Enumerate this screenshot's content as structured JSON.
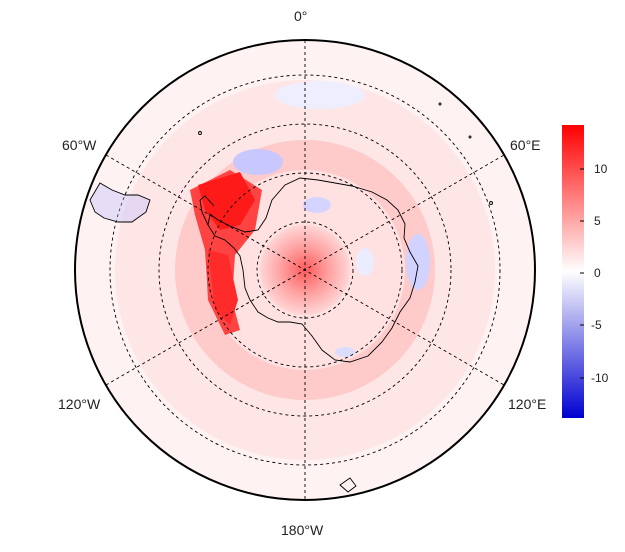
{
  "map": {
    "type": "polar-stereographic",
    "hemisphere": "south",
    "longitude_labels": {
      "top": "0°",
      "upper_left": "60°W",
      "upper_right": "60°E",
      "lower_left": "120°W",
      "lower_right": "120°E",
      "bottom": "180°W"
    },
    "graticule": "dashed",
    "field_description": "diverging anomaly field, strong positive anomaly over the Antarctic Peninsula / Bellingshausen Sea sector and a weaker positive center at the pole, weak negatives in patches"
  },
  "colorbar": {
    "ticks": [
      "10",
      "5",
      "0",
      "-5",
      "-10"
    ],
    "tick_values": [
      10,
      5,
      0,
      -5,
      -10
    ],
    "range": [
      -14,
      14
    ],
    "colors": {
      "low": "#0000d0",
      "mid": "#ffffff",
      "high": "#ff0000"
    }
  }
}
